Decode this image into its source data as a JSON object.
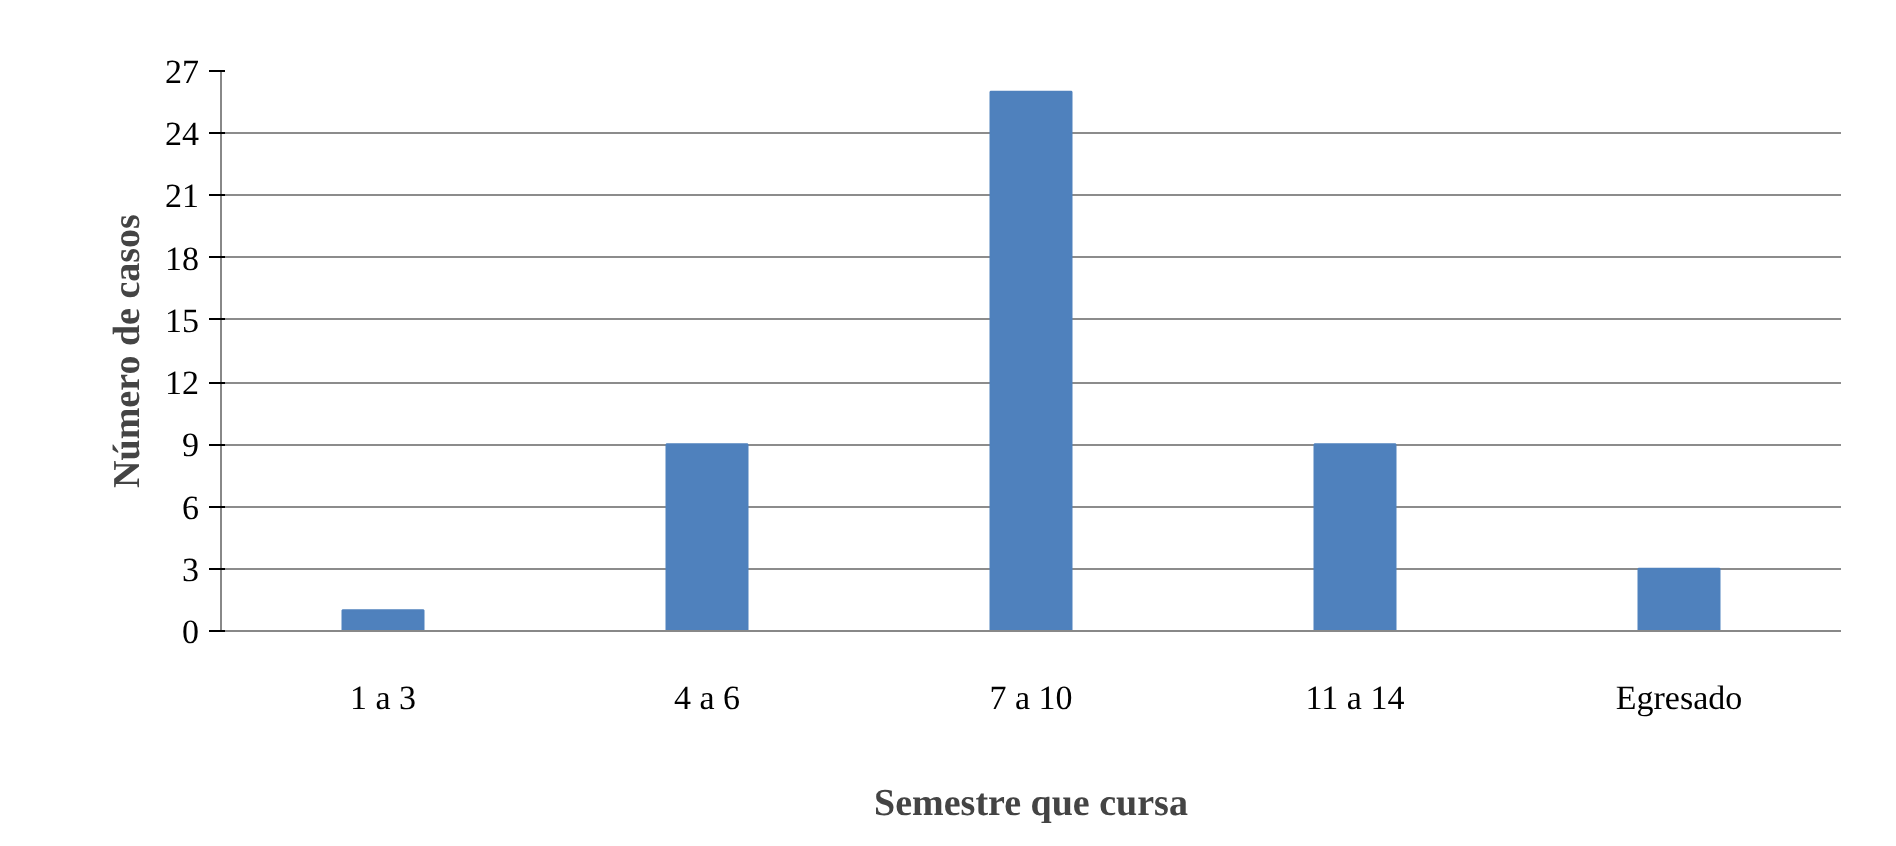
{
  "chart_data": {
    "type": "bar",
    "xlabel": "Semestre que cursa",
    "ylabel": "Número de casos",
    "categories": [
      "1 a 3",
      "4 a 6",
      "7 a 10",
      "11 a 14",
      "Egresado"
    ],
    "values": [
      1,
      9,
      26,
      9,
      3
    ],
    "color": "#4f81bd",
    "ylim": [
      0,
      27
    ],
    "yticks": [
      0,
      3,
      6,
      9,
      12,
      15,
      18,
      21,
      24,
      27
    ],
    "grid": "y"
  }
}
